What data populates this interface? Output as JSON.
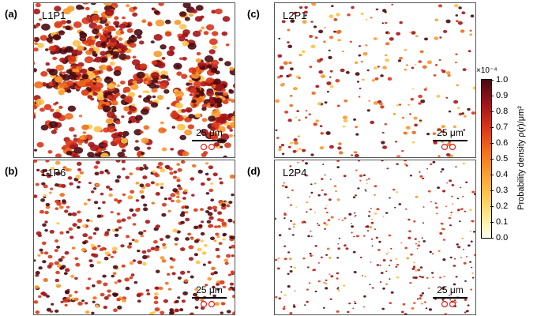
{
  "panels": [
    {
      "letter": "(a)",
      "label": "L1P1",
      "scale": "25 μm",
      "density": "very-high"
    },
    {
      "letter": "(b)",
      "label": "L1P6",
      "scale": "25 μm",
      "density": "high"
    },
    {
      "letter": "(c)",
      "label": "L2P1",
      "scale": "25 μm",
      "density": "medium"
    },
    {
      "letter": "(d)",
      "label": "L2P4",
      "scale": "25 μm",
      "density": "low"
    }
  ],
  "colorbar": {
    "multiplier": "×10⁻⁴",
    "label": "Probability density ρ(r)/μm²",
    "ticks": [
      "0.0",
      "0.1",
      "0.2",
      "0.3",
      "0.4",
      "0.5",
      "0.6",
      "0.7",
      "0.8",
      "0.9",
      "1.0"
    ],
    "range": [
      0.0,
      1.0
    ],
    "colors": [
      "#fffff2",
      "#ffec9a",
      "#fdc34a",
      "#f89a2c",
      "#ef6b1c",
      "#d7361a",
      "#a3151a",
      "#4a0a10"
    ]
  },
  "ring_color": "#e0201a"
}
